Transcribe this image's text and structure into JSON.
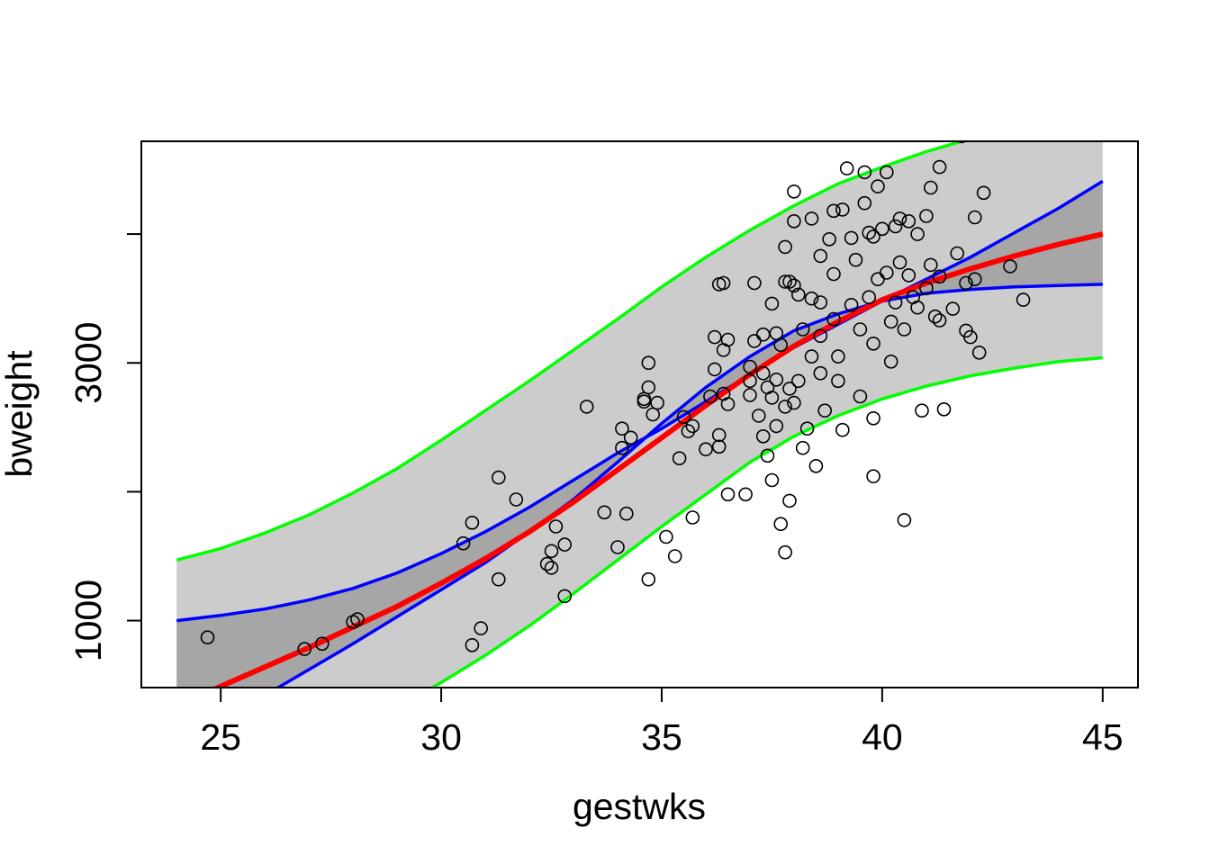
{
  "chart_data": {
    "type": "scatter",
    "xlabel": "gestwks",
    "ylabel": "bweight",
    "xlim": [
      23.2,
      45.8
    ],
    "ylim": [
      480,
      4720
    ],
    "x_ticks": [
      25,
      30,
      35,
      40,
      45
    ],
    "y_ticks": [
      1000,
      2000,
      3000,
      4000
    ],
    "y_tick_labels": [
      {
        "value": 1000,
        "label": "1000"
      },
      {
        "value": 3000,
        "label": "3000"
      }
    ],
    "grid": false,
    "colors": {
      "fit": "#ff0000",
      "confidence_band": "#0000ff",
      "prediction_band": "#00ff00",
      "confidence_fill": "#a6a6a6",
      "prediction_fill": "#cccccc",
      "points": "#000000"
    },
    "x_grid": [
      24,
      25,
      26,
      27,
      28,
      29,
      30,
      31,
      32,
      33,
      34,
      35,
      36,
      37,
      38,
      39,
      40,
      41,
      42,
      43,
      44,
      45
    ],
    "fit": [
      335,
      490,
      640,
      790,
      950,
      1110,
      1290,
      1480,
      1690,
      1920,
      2170,
      2420,
      2670,
      2910,
      3130,
      3320,
      3490,
      3620,
      3730,
      3830,
      3920,
      4000
    ],
    "conf_lower": [
      -10,
      220,
      420,
      620,
      820,
      1030,
      1240,
      1450,
      1690,
      1940,
      2230,
      2530,
      2810,
      3050,
      3250,
      3380,
      3480,
      3540,
      3570,
      3590,
      3600,
      3610
    ],
    "conf_upper": [
      1000,
      1040,
      1090,
      1160,
      1250,
      1370,
      1520,
      1690,
      1880,
      2090,
      2300,
      2490,
      2700,
      2910,
      3120,
      3300,
      3480,
      3650,
      3820,
      4010,
      4200,
      4410
    ],
    "pred_lower": [
      -420,
      -300,
      -160,
      -10,
      150,
      320,
      520,
      730,
      960,
      1210,
      1470,
      1730,
      1980,
      2230,
      2430,
      2590,
      2720,
      2820,
      2900,
      2960,
      3010,
      3040
    ],
    "pred_upper": [
      1470,
      1560,
      1680,
      1820,
      1990,
      2180,
      2400,
      2630,
      2860,
      3100,
      3340,
      3590,
      3820,
      4030,
      4220,
      4390,
      4520,
      4640,
      4740,
      4820,
      4890,
      4950
    ],
    "points": [
      [
        24.7,
        870
      ],
      [
        26.9,
        780
      ],
      [
        27.3,
        820
      ],
      [
        28.0,
        990
      ],
      [
        28.1,
        1010
      ],
      [
        30.5,
        1600
      ],
      [
        30.7,
        1760
      ],
      [
        30.7,
        810
      ],
      [
        30.9,
        940
      ],
      [
        31.3,
        1320
      ],
      [
        31.3,
        2110
      ],
      [
        31.7,
        1940
      ],
      [
        32.4,
        1440
      ],
      [
        32.5,
        1410
      ],
      [
        32.5,
        1540
      ],
      [
        32.6,
        1730
      ],
      [
        32.8,
        1590
      ],
      [
        32.8,
        1190
      ],
      [
        33.3,
        2660
      ],
      [
        33.7,
        1840
      ],
      [
        34.0,
        1570
      ],
      [
        34.1,
        2340
      ],
      [
        34.1,
        2490
      ],
      [
        34.2,
        1830
      ],
      [
        34.3,
        2420
      ],
      [
        34.6,
        2700
      ],
      [
        34.6,
        2720
      ],
      [
        34.7,
        3000
      ],
      [
        34.7,
        2810
      ],
      [
        34.8,
        2600
      ],
      [
        34.7,
        1320
      ],
      [
        34.9,
        2690
      ],
      [
        35.1,
        1650
      ],
      [
        35.3,
        1500
      ],
      [
        35.4,
        2260
      ],
      [
        35.5,
        2580
      ],
      [
        35.6,
        2470
      ],
      [
        35.7,
        1800
      ],
      [
        35.7,
        2510
      ],
      [
        36.0,
        2330
      ],
      [
        36.1,
        2740
      ],
      [
        36.2,
        2950
      ],
      [
        36.3,
        3610
      ],
      [
        36.2,
        3200
      ],
      [
        36.3,
        2440
      ],
      [
        36.3,
        2350
      ],
      [
        36.4,
        3100
      ],
      [
        36.4,
        3620
      ],
      [
        36.4,
        2760
      ],
      [
        36.5,
        2680
      ],
      [
        36.5,
        1980
      ],
      [
        36.5,
        3180
      ],
      [
        36.9,
        1980
      ],
      [
        37.0,
        2970
      ],
      [
        37.0,
        2860
      ],
      [
        37.0,
        2750
      ],
      [
        37.1,
        3170
      ],
      [
        37.1,
        3620
      ],
      [
        37.2,
        2590
      ],
      [
        37.3,
        2430
      ],
      [
        37.3,
        3220
      ],
      [
        37.3,
        2920
      ],
      [
        37.4,
        2810
      ],
      [
        37.4,
        2280
      ],
      [
        37.5,
        2730
      ],
      [
        37.5,
        2090
      ],
      [
        37.5,
        3460
      ],
      [
        37.6,
        2510
      ],
      [
        37.6,
        3230
      ],
      [
        37.6,
        2870
      ],
      [
        37.7,
        1750
      ],
      [
        37.7,
        3140
      ],
      [
        37.8,
        3630
      ],
      [
        37.8,
        2660
      ],
      [
        37.8,
        3900
      ],
      [
        37.8,
        1530
      ],
      [
        37.9,
        1930
      ],
      [
        37.9,
        2800
      ],
      [
        37.9,
        3630
      ],
      [
        38.0,
        3600
      ],
      [
        38.0,
        2690
      ],
      [
        38.0,
        4100
      ],
      [
        38.0,
        4330
      ],
      [
        38.1,
        3530
      ],
      [
        38.1,
        2860
      ],
      [
        38.2,
        3260
      ],
      [
        38.2,
        2340
      ],
      [
        38.3,
        2490
      ],
      [
        38.4,
        4120
      ],
      [
        38.4,
        3500
      ],
      [
        38.4,
        3050
      ],
      [
        38.5,
        2200
      ],
      [
        38.6,
        3830
      ],
      [
        38.6,
        3470
      ],
      [
        38.6,
        3210
      ],
      [
        38.6,
        2920
      ],
      [
        38.7,
        2630
      ],
      [
        38.7,
        4840
      ],
      [
        38.8,
        3960
      ],
      [
        38.9,
        4180
      ],
      [
        38.9,
        3690
      ],
      [
        38.9,
        3340
      ],
      [
        39.0,
        3050
      ],
      [
        39.0,
        2860
      ],
      [
        39.1,
        4190
      ],
      [
        39.1,
        2480
      ],
      [
        39.2,
        4510
      ],
      [
        39.3,
        3970
      ],
      [
        39.3,
        3450
      ],
      [
        39.4,
        3800
      ],
      [
        39.5,
        3260
      ],
      [
        39.5,
        2740
      ],
      [
        39.6,
        4240
      ],
      [
        39.6,
        4480
      ],
      [
        39.7,
        4010
      ],
      [
        39.7,
        3510
      ],
      [
        39.8,
        2120
      ],
      [
        39.8,
        3980
      ],
      [
        39.8,
        3150
      ],
      [
        39.8,
        2570
      ],
      [
        39.9,
        4370
      ],
      [
        39.9,
        3650
      ],
      [
        40.0,
        4860
      ],
      [
        40.0,
        4040
      ],
      [
        40.1,
        4480
      ],
      [
        40.1,
        3700
      ],
      [
        40.2,
        3320
      ],
      [
        40.2,
        3010
      ],
      [
        40.3,
        4060
      ],
      [
        40.3,
        3470
      ],
      [
        40.4,
        4120
      ],
      [
        40.4,
        3780
      ],
      [
        40.5,
        1780
      ],
      [
        40.5,
        3260
      ],
      [
        40.6,
        4100
      ],
      [
        40.6,
        3680
      ],
      [
        40.7,
        3510
      ],
      [
        40.8,
        4000
      ],
      [
        40.8,
        3430
      ],
      [
        40.9,
        4800
      ],
      [
        40.9,
        2630
      ],
      [
        41.0,
        4140
      ],
      [
        41.0,
        3580
      ],
      [
        41.1,
        4360
      ],
      [
        41.1,
        3760
      ],
      [
        41.2,
        3360
      ],
      [
        41.3,
        3670
      ],
      [
        41.3,
        4520
      ],
      [
        41.3,
        3330
      ],
      [
        41.4,
        2640
      ],
      [
        41.6,
        3420
      ],
      [
        41.7,
        3850
      ],
      [
        41.8,
        4760
      ],
      [
        41.9,
        3620
      ],
      [
        41.9,
        3250
      ],
      [
        42.0,
        3200
      ],
      [
        42.1,
        4130
      ],
      [
        42.1,
        3650
      ],
      [
        42.2,
        3080
      ],
      [
        42.3,
        4320
      ],
      [
        42.9,
        3750
      ],
      [
        43.2,
        3490
      ]
    ]
  }
}
